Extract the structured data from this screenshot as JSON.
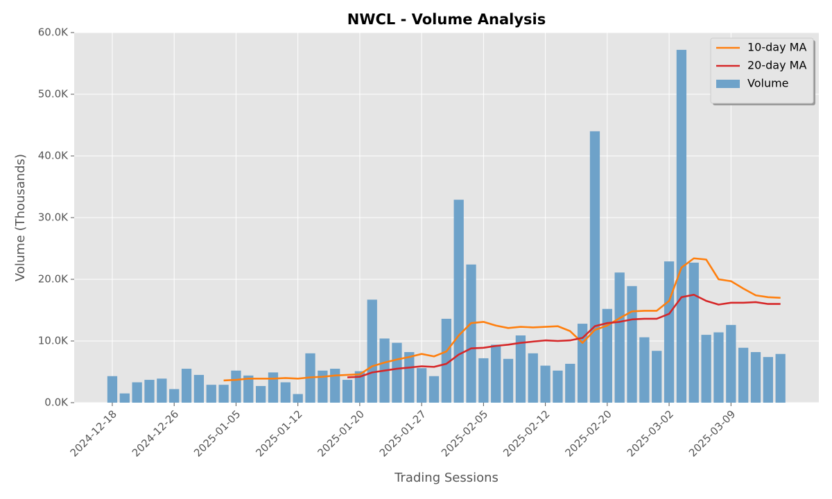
{
  "chart_data": {
    "type": "bar",
    "title": "NWCL - Volume Analysis",
    "x_label": "Trading Sessions",
    "y_label": "Volume (Thousands)",
    "categories": [
      "2024-12-18",
      null,
      null,
      null,
      null,
      "2024-12-26",
      null,
      null,
      null,
      null,
      "2025-01-05",
      null,
      null,
      null,
      null,
      "2025-01-12",
      null,
      null,
      null,
      null,
      "2025-01-20",
      null,
      null,
      null,
      null,
      "2025-01-27",
      null,
      null,
      null,
      null,
      "2025-02-05",
      null,
      null,
      null,
      null,
      "2025-02-12",
      null,
      null,
      null,
      null,
      "2025-02-20",
      null,
      null,
      null,
      null,
      "2025-03-02",
      null,
      null,
      null,
      null,
      "2025-03-09",
      null,
      null,
      null,
      null
    ],
    "series": [
      {
        "name": "Volume",
        "type": "bar",
        "color": "#6ea2c9",
        "values": [
          4300,
          1500,
          3300,
          3700,
          3900,
          2200,
          5500,
          4500,
          2900,
          2900,
          5200,
          4400,
          2700,
          4900,
          3300,
          1400,
          8000,
          5200,
          5500,
          3700,
          5100,
          16700,
          10400,
          9700,
          8200,
          5600,
          4300,
          13600,
          32900,
          22400,
          7200,
          9400,
          7100,
          10900,
          8000,
          6000,
          5200,
          6300,
          12800,
          44000,
          15200,
          21100,
          18900,
          10600,
          8400,
          22900,
          57200,
          22700,
          11000,
          11400,
          12600,
          8900,
          8200,
          7400,
          7900
        ]
      },
      {
        "name": "10-day MA",
        "type": "line",
        "color": "#ff7f0e",
        "values": [
          null,
          null,
          null,
          null,
          null,
          null,
          null,
          null,
          null,
          3600,
          3700,
          3900,
          3900,
          3900,
          4000,
          3900,
          4100,
          4200,
          4400,
          4500,
          4600,
          5900,
          6500,
          7000,
          7400,
          7900,
          7500,
          8300,
          10900,
          12900,
          13100,
          12500,
          12100,
          12300,
          12200,
          12300,
          12400,
          11600,
          9700,
          11800,
          12500,
          13700,
          14800,
          14900,
          14900,
          16500,
          21900,
          23400,
          23200,
          20000,
          19700,
          18500,
          17400,
          17100,
          17000
        ]
      },
      {
        "name": "20-day MA",
        "type": "line",
        "color": "#d62728",
        "values": [
          null,
          null,
          null,
          null,
          null,
          null,
          null,
          null,
          null,
          null,
          null,
          null,
          null,
          null,
          null,
          null,
          null,
          null,
          null,
          4100,
          4200,
          4900,
          5200,
          5500,
          5700,
          5900,
          5800,
          6300,
          7800,
          8800,
          8900,
          9200,
          9400,
          9700,
          9900,
          10100,
          10000,
          10100,
          10500,
          12400,
          12900,
          13100,
          13500,
          13600,
          13600,
          14400,
          17100,
          17500,
          16500,
          15900,
          16200,
          16200,
          16300,
          16000,
          16000
        ]
      }
    ],
    "xlim": [
      -3.08,
      57.1
    ],
    "ylim": [
      0,
      60000
    ],
    "yticks": [
      {
        "value": 0,
        "label": "0.0K"
      },
      {
        "value": 10000,
        "label": "10.0K"
      },
      {
        "value": 20000,
        "label": "20.0K"
      },
      {
        "value": 30000,
        "label": "30.0K"
      },
      {
        "value": 40000,
        "label": "40.0K"
      },
      {
        "value": 50000,
        "label": "50.0K"
      },
      {
        "value": 60000,
        "label": "60.0K"
      }
    ],
    "grid": true,
    "legend": "upper right"
  }
}
